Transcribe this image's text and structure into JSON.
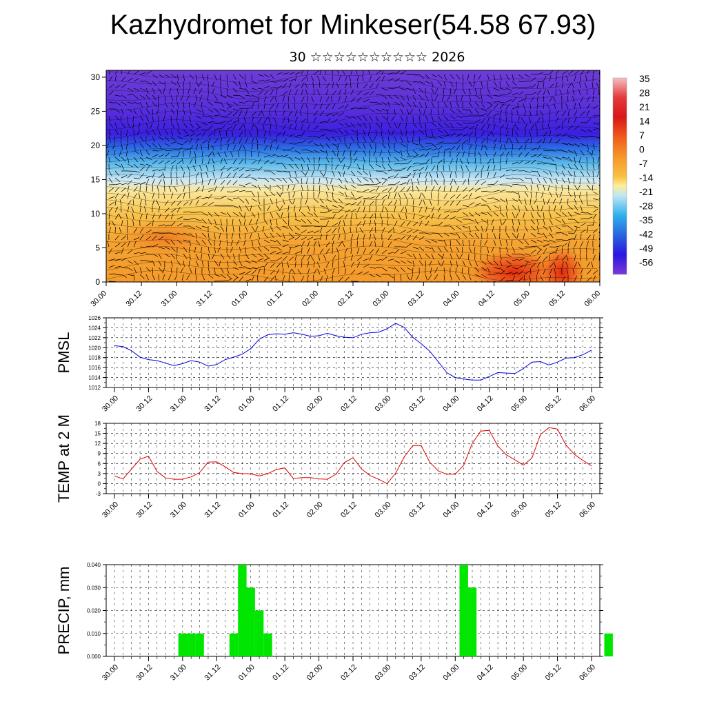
{
  "title": "Kazhydromet for Minkeser(54.58 67.93)",
  "subtitle": "30 ☆☆☆☆☆☆☆☆☆☆ 2026",
  "chart_data": [
    {
      "type": "heatmap",
      "name": "temperature-wind cross-section",
      "y": {
        "ticks": [
          "0",
          "5",
          "10",
          "15",
          "20",
          "25",
          "30"
        ],
        "range": [
          0,
          31
        ]
      },
      "x": {
        "ticks": [
          "30.00",
          "30.12",
          "31.00",
          "31.12",
          "01.00",
          "01.12",
          "02.00",
          "02.12",
          "03.00",
          "03.12",
          "04.00",
          "04.12",
          "05.00",
          "05.12",
          "06.00"
        ]
      },
      "colorbar": {
        "labels": [
          "35",
          "28",
          "21",
          "14",
          "7",
          "0",
          "-7",
          "-14",
          "-21",
          "-28",
          "-35",
          "-42",
          "-49",
          "-56"
        ],
        "range": [
          -63,
          38
        ]
      },
      "colors": {
        "hot": "#e62a10",
        "warm": "#f7a733",
        "yellow": "#fbe58a",
        "cold": "#37a8e8",
        "deep": "#3d22e0",
        "violet": "#6b3ad8"
      }
    },
    {
      "type": "line",
      "ylabel": "PMSL",
      "ylim": [
        1012,
        1026
      ],
      "yticks": [
        "1012",
        "1014",
        "1016",
        "1018",
        "1020",
        "1022",
        "1024",
        "1026"
      ],
      "x_ticks": [
        "30.00",
        "30.12",
        "31.00",
        "31.12",
        "01.00",
        "01.12",
        "02.00",
        "02.12",
        "03.00",
        "03.12",
        "04.00",
        "04.12",
        "05.00",
        "05.12",
        "06.00"
      ],
      "series": [
        {
          "color": "#0000dd",
          "values": [
            1020.4,
            1020.2,
            1019.4,
            1018.1,
            1017.6,
            1017.4,
            1016.9,
            1016.4,
            1016.8,
            1017.4,
            1017.1,
            1016.3,
            1016.6,
            1017.6,
            1018.1,
            1018.7,
            1019.8,
            1021.7,
            1022.6,
            1022.8,
            1022.7,
            1023.0,
            1022.7,
            1022.3,
            1022.4,
            1022.9,
            1022.4,
            1022.1,
            1022.0,
            1022.7,
            1023.0,
            1023.1,
            1023.8,
            1024.9,
            1024.1,
            1022.1,
            1020.8,
            1019.3,
            1017.2,
            1015.0,
            1014.0,
            1013.7,
            1013.5,
            1013.5,
            1014.2,
            1015.0,
            1014.9,
            1014.8,
            1015.8,
            1017.1,
            1017.2,
            1016.5,
            1017.1,
            1017.9,
            1018.0,
            1018.6,
            1019.5
          ]
        }
      ]
    },
    {
      "type": "line",
      "ylabel": "TEMP at 2 M",
      "ylim": [
        -3,
        18
      ],
      "yticks": [
        "-3",
        "0",
        "3",
        "6",
        "9",
        "12",
        "15",
        "18"
      ],
      "x_ticks": [
        "30.00",
        "30.12",
        "31.00",
        "31.12",
        "01.00",
        "01.12",
        "02.00",
        "02.12",
        "03.00",
        "03.12",
        "04.00",
        "04.12",
        "05.00",
        "05.12",
        "06.00"
      ],
      "series": [
        {
          "color": "#dd0000",
          "values": [
            2.3,
            1.4,
            4.3,
            7.3,
            8.2,
            3.6,
            1.7,
            1.3,
            1.3,
            2.0,
            3.3,
            6.4,
            6.5,
            5.0,
            3.3,
            3.0,
            2.9,
            2.3,
            3.0,
            4.2,
            4.7,
            1.5,
            1.8,
            1.8,
            1.4,
            1.3,
            2.8,
            6.3,
            7.7,
            4.4,
            2.4,
            1.3,
            0.0,
            3.1,
            7.9,
            11.3,
            11.4,
            6.4,
            3.8,
            2.8,
            2.8,
            5.5,
            12.0,
            15.7,
            15.9,
            11.2,
            8.6,
            7.1,
            5.5,
            7.6,
            14.7,
            16.7,
            16.3,
            11.5,
            8.7,
            6.9,
            5.3
          ]
        }
      ]
    },
    {
      "type": "bar",
      "ylabel": "PRECIP, mm",
      "ylim": [
        0,
        0.04
      ],
      "yticks": [
        "0.000",
        "0.010",
        "0.020",
        "0.030",
        "0.040"
      ],
      "x_ticks": [
        "30.00",
        "30.12",
        "31.00",
        "31.12",
        "01.00",
        "01.12",
        "02.00",
        "02.12",
        "03.00",
        "03.12",
        "04.00",
        "04.12",
        "05.00",
        "05.12",
        "06.00"
      ],
      "bar_color": "#00e600",
      "bars": [
        {
          "i": 8,
          "v": 0.01
        },
        {
          "i": 9,
          "v": 0.01
        },
        {
          "i": 10,
          "v": 0.01
        },
        {
          "i": 14,
          "v": 0.01
        },
        {
          "i": 15,
          "v": 0.04
        },
        {
          "i": 16,
          "v": 0.03
        },
        {
          "i": 17,
          "v": 0.02
        },
        {
          "i": 18,
          "v": 0.01
        },
        {
          "i": 41,
          "v": 0.04
        },
        {
          "i": 42,
          "v": 0.03
        },
        {
          "i": 58,
          "v": 0.01
        }
      ]
    }
  ]
}
